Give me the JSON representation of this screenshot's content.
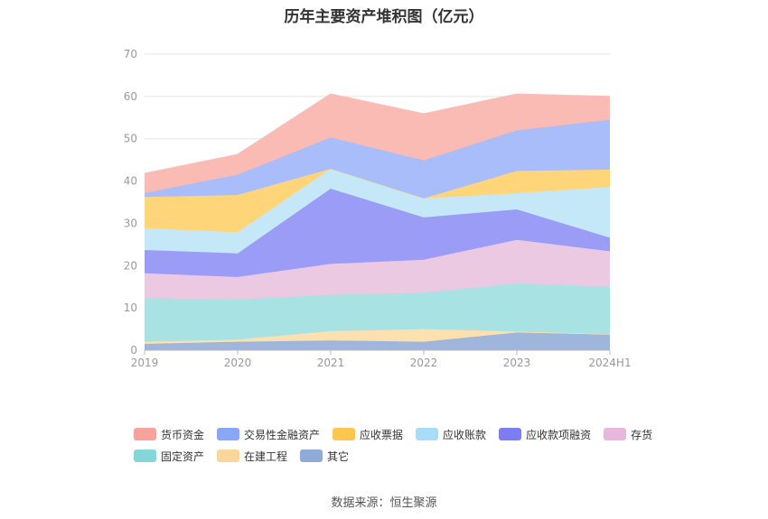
{
  "title": "历年主要资产堆积图（亿元）",
  "source": "数据来源：恒生聚源",
  "chart_data": {
    "type": "area",
    "stacked": true,
    "categories": [
      "2019",
      "2020",
      "2021",
      "2022",
      "2023",
      "2024H1"
    ],
    "ylim": [
      0,
      70
    ],
    "yticks": [
      0,
      10,
      20,
      30,
      40,
      50,
      60,
      70
    ],
    "grid": true,
    "legend_position": "bottom",
    "series": [
      {
        "name": "其它",
        "color": "#9fb6dc",
        "values": [
          1.5,
          2.0,
          2.3,
          2.0,
          4.2,
          3.7
        ]
      },
      {
        "name": "在建工程",
        "color": "#fde0b0",
        "values": [
          0.5,
          0.5,
          2.2,
          3.0,
          0.2,
          0.1
        ]
      },
      {
        "name": "固定资产",
        "color": "#a8e2e2",
        "values": [
          10.3,
          9.5,
          8.6,
          8.6,
          11.4,
          11.2
        ]
      },
      {
        "name": "存货",
        "color": "#ecc9e3",
        "values": [
          5.9,
          5.3,
          7.3,
          7.8,
          10.3,
          8.4
        ]
      },
      {
        "name": "应收款项融资",
        "color": "#9b9cf6",
        "values": [
          5.5,
          5.6,
          17.8,
          10.0,
          7.2,
          3.2
        ]
      },
      {
        "name": "应收账款",
        "color": "#c5e8f9",
        "values": [
          5.1,
          5.0,
          4.7,
          4.5,
          3.8,
          12.0
        ]
      },
      {
        "name": "应收票据",
        "color": "#ffd57a",
        "values": [
          7.4,
          8.8,
          0.0,
          0.0,
          5.3,
          4.1
        ]
      },
      {
        "name": "交易性金融资产",
        "color": "#a9bdfb",
        "values": [
          1.0,
          4.8,
          7.4,
          9.0,
          9.6,
          11.8
        ]
      },
      {
        "name": "货币资金",
        "color": "#fbbbb5",
        "values": [
          4.6,
          4.8,
          10.3,
          11.0,
          8.6,
          5.5
        ]
      }
    ]
  },
  "legend": [
    {
      "label": "货币资金",
      "color": "#f7a29a"
    },
    {
      "label": "交易性金融资产",
      "color": "#89a7f6"
    },
    {
      "label": "应收票据",
      "color": "#fdc64e"
    },
    {
      "label": "应收账款",
      "color": "#a9ddf7"
    },
    {
      "label": "应收款项融资",
      "color": "#7b7df1"
    },
    {
      "label": "存货",
      "color": "#e8b8dc"
    },
    {
      "label": "固定资产",
      "color": "#85d6d6"
    },
    {
      "label": "在建工程",
      "color": "#fbd59a"
    },
    {
      "label": "其它",
      "color": "#8eabd9"
    }
  ]
}
